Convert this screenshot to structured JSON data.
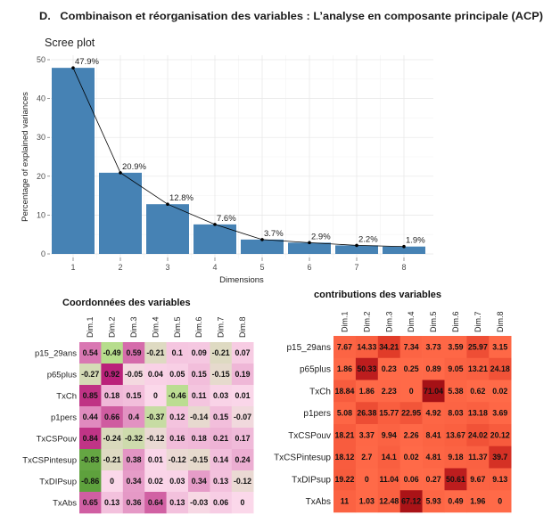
{
  "heading": "D.   Combinaison et réorganisation des variables : L’analyse en composante principale (ACP)",
  "chart_data": [
    {
      "type": "bar",
      "title": "Scree plot",
      "xlabel": "Dimensions",
      "ylabel": "Percentage of explained variances",
      "categories": [
        "1",
        "2",
        "3",
        "4",
        "5",
        "6",
        "7",
        "8"
      ],
      "values": [
        47.9,
        20.9,
        12.8,
        7.6,
        3.7,
        2.9,
        2.2,
        1.9
      ],
      "value_suffix": "%",
      "yticks": [
        0,
        10,
        20,
        30,
        40,
        50
      ],
      "ylim": [
        0,
        50
      ],
      "line_overlay": true,
      "grid": true,
      "bar_color": "#4682b4",
      "line_color": "#000000"
    },
    {
      "type": "heatmap",
      "title": "Coordonnées des variables",
      "columns": [
        "Dim.1",
        "Dim.2",
        "Dim.3",
        "Dim.4",
        "Dim.5",
        "Dim.6",
        "Dim.7",
        "Dim.8"
      ],
      "rows": [
        "p15_29ans",
        "p65plus",
        "TxCh",
        "p1pers",
        "TxCSPouv",
        "TxCSPintesup",
        "TxDIPsup",
        "TxAbs"
      ],
      "values": [
        [
          0.54,
          -0.49,
          0.59,
          -0.21,
          0.1,
          0.09,
          -0.21,
          0.07
        ],
        [
          -0.27,
          0.92,
          -0.05,
          0.04,
          0.05,
          0.15,
          -0.15,
          0.19
        ],
        [
          0.85,
          0.18,
          0.15,
          0,
          -0.46,
          0.11,
          0.03,
          0.01
        ],
        [
          0.44,
          0.66,
          0.4,
          -0.37,
          0.12,
          -0.14,
          0.15,
          -0.07
        ],
        [
          0.84,
          -0.24,
          -0.32,
          -0.12,
          0.16,
          0.18,
          0.21,
          0.17
        ],
        [
          -0.83,
          -0.21,
          0.38,
          0.01,
          -0.12,
          -0.15,
          0.14,
          0.24
        ],
        [
          -0.86,
          0,
          0.34,
          0.02,
          0.03,
          0.34,
          0.13,
          -0.12
        ],
        [
          0.65,
          0.13,
          0.36,
          0.64,
          0.13,
          -0.03,
          0.06,
          0
        ]
      ],
      "color_stops": [
        [
          -1,
          "#3c8a1f"
        ],
        [
          -0.5,
          "#b5dd8a"
        ],
        [
          0,
          "#fbd8ea"
        ],
        [
          0.5,
          "#dc80b8"
        ],
        [
          1,
          "#b3106e"
        ]
      ]
    },
    {
      "type": "heatmap",
      "title": "contributions des variables",
      "columns": [
        "Dim.1",
        "Dim.2",
        "Dim.3",
        "Dim.4",
        "Dim.5",
        "Dim.6",
        "Dim.7",
        "Dim.8"
      ],
      "rows": [
        "p15_29ans",
        "p65plus",
        "TxCh",
        "p1pers",
        "TxCSPouv",
        "TxCSPintesup",
        "TxDIPsup",
        "TxAbs"
      ],
      "values": [
        [
          7.67,
          14.33,
          34.21,
          7.34,
          3.73,
          3.59,
          25.97,
          3.15
        ],
        [
          1.86,
          50.33,
          0.23,
          0.25,
          0.89,
          9.05,
          13.21,
          24.18
        ],
        [
          18.84,
          1.86,
          2.23,
          0,
          71.04,
          5.38,
          0.62,
          0.02
        ],
        [
          5.08,
          26.38,
          15.77,
          22.95,
          4.92,
          8.03,
          13.18,
          3.69
        ],
        [
          18.21,
          3.37,
          9.94,
          2.26,
          8.41,
          13.67,
          24.02,
          20.12
        ],
        [
          18.12,
          2.7,
          14.1,
          0.02,
          4.81,
          9.18,
          11.37,
          39.7
        ],
        [
          19.22,
          0,
          11.04,
          0.06,
          0.27,
          50.61,
          9.67,
          9.13
        ],
        [
          11,
          1.03,
          12.48,
          67.12,
          5.93,
          0.49,
          1.96,
          0
        ]
      ],
      "color_stops": [
        [
          0,
          "#ff6a48"
        ],
        [
          20,
          "#f75b3d"
        ],
        [
          35,
          "#e03a28"
        ],
        [
          50,
          "#bd1d1e"
        ],
        [
          75,
          "#a10f14"
        ]
      ]
    }
  ]
}
